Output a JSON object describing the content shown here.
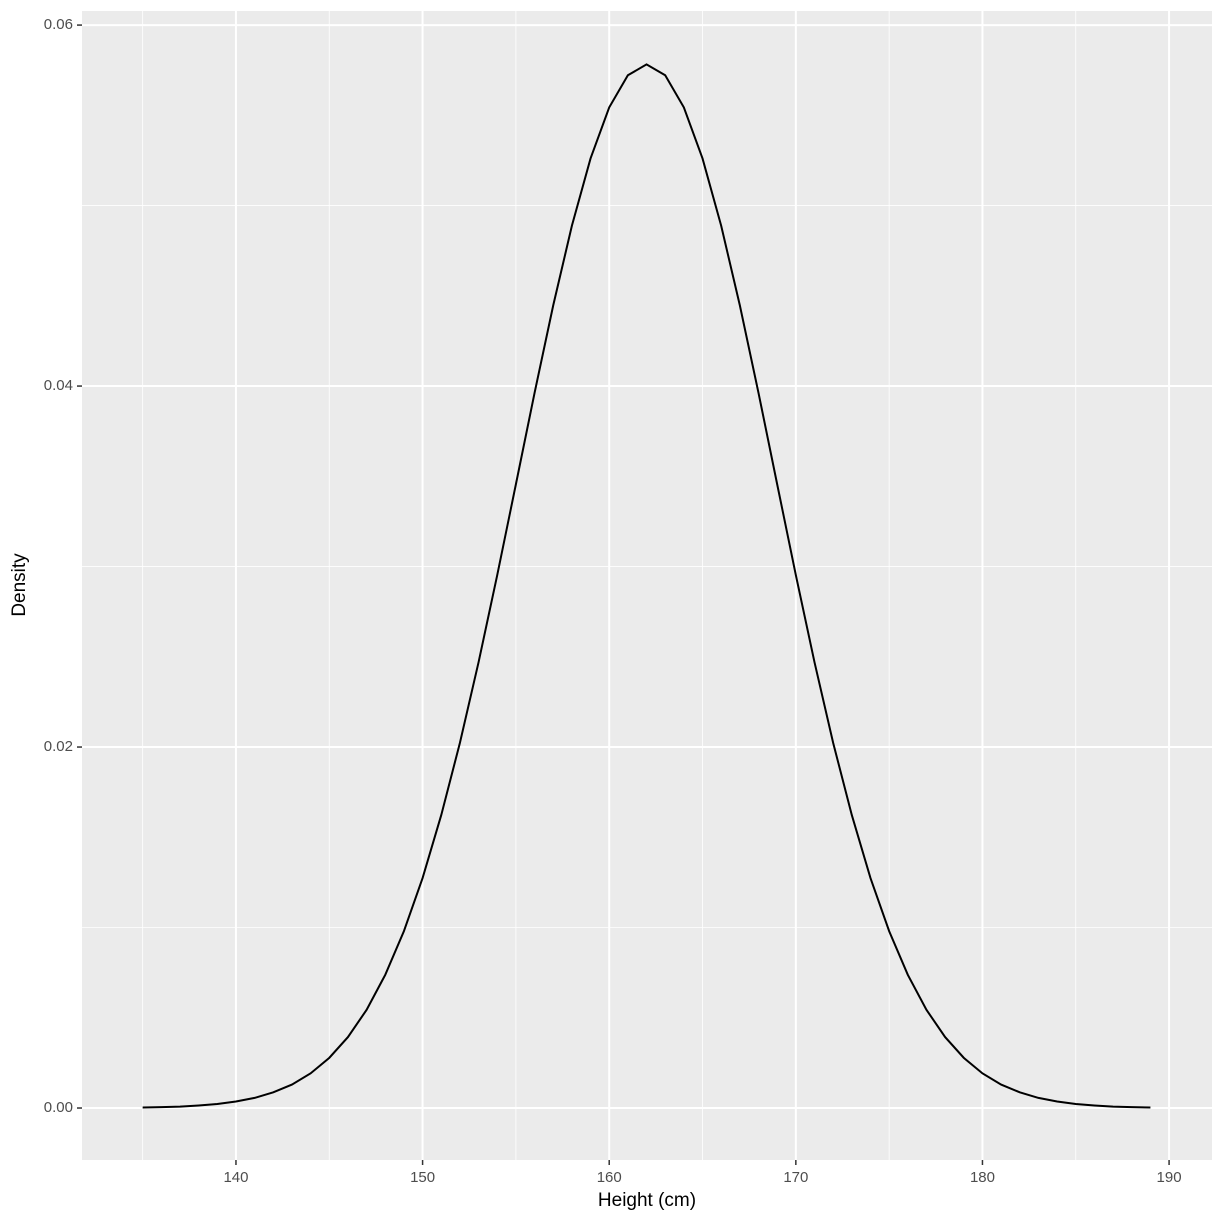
{
  "chart_data": {
    "type": "line",
    "x_label": "Height (cm)",
    "y_label": "Density",
    "x": [
      135,
      136,
      137,
      138,
      139,
      140,
      141,
      142,
      143,
      144,
      145,
      146,
      147,
      148,
      149,
      150,
      151,
      152,
      153,
      154,
      155,
      156,
      157,
      158,
      159,
      160,
      161,
      162,
      163,
      164,
      165,
      166,
      167,
      168,
      169,
      170,
      171,
      172,
      173,
      174,
      175,
      176,
      177,
      178,
      179,
      180,
      181,
      182,
      183,
      184,
      185,
      186,
      187,
      188,
      189
    ],
    "series": [
      {
        "color": "#000000",
        "values": [
          3e-05,
          5e-05,
          8e-05,
          0.00014,
          0.00022,
          0.00036,
          0.00056,
          0.00087,
          0.0013,
          0.00192,
          0.00278,
          0.00393,
          0.00544,
          0.00738,
          0.0098,
          0.01274,
          0.01623,
          0.02023,
          0.0247,
          0.02953,
          0.03456,
          0.03962,
          0.04447,
          0.04888,
          0.05261,
          0.05544,
          0.05722,
          0.05782,
          0.05722,
          0.05544,
          0.05261,
          0.04888,
          0.04447,
          0.03962,
          0.03456,
          0.02953,
          0.0247,
          0.02023,
          0.01623,
          0.01274,
          0.0098,
          0.00738,
          0.00544,
          0.00393,
          0.00278,
          0.00192,
          0.0013,
          0.00087,
          0.00056,
          0.00036,
          0.00022,
          0.00014,
          8e-05,
          5e-05,
          3e-05
        ]
      }
    ],
    "xlim": [
      131.75,
      192.3
    ],
    "ylim": [
      -0.00288,
      0.06078
    ],
    "xticks": [
      140,
      150,
      160,
      170,
      180,
      190
    ],
    "yticks": [
      {
        "value": 0,
        "label": "0.00"
      },
      {
        "value": 0.02,
        "label": "0.02"
      },
      {
        "value": 0.04,
        "label": "0.04"
      },
      0.06
    ],
    "x_minor_grid": [
      135,
      145,
      155,
      165,
      175,
      185
    ],
    "y_minor_grid": [
      0.01,
      0.03,
      0.05
    ],
    "grid": true,
    "panel_color": "#ebebeb",
    "grid_color": "#ffffff"
  }
}
